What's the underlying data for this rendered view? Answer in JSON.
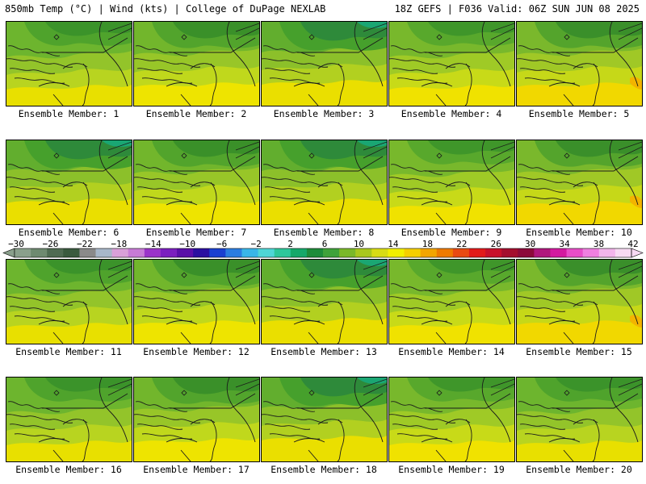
{
  "header": {
    "left": "850mb Temp (°C) | Wind (kts) | College of DuPage NEXLAB",
    "right": "18Z GEFS | F036 Valid: 06Z SUN JUN 08 2025"
  },
  "members": [
    {
      "caption": "Ensemble Member: 1",
      "variant": 0
    },
    {
      "caption": "Ensemble Member: 2",
      "variant": 1
    },
    {
      "caption": "Ensemble Member: 3",
      "variant": 2
    },
    {
      "caption": "Ensemble Member: 4",
      "variant": 3
    },
    {
      "caption": "Ensemble Member: 5",
      "variant": 4
    },
    {
      "caption": "Ensemble Member: 6",
      "variant": 2
    },
    {
      "caption": "Ensemble Member: 7",
      "variant": 1
    },
    {
      "caption": "Ensemble Member: 8",
      "variant": 2
    },
    {
      "caption": "Ensemble Member: 9",
      "variant": 3
    },
    {
      "caption": "Ensemble Member: 10",
      "variant": 4
    },
    {
      "caption": "Ensemble Member: 11",
      "variant": 0
    },
    {
      "caption": "Ensemble Member: 12",
      "variant": 1
    },
    {
      "caption": "Ensemble Member: 13",
      "variant": 2
    },
    {
      "caption": "Ensemble Member: 14",
      "variant": 3
    },
    {
      "caption": "Ensemble Member: 15",
      "variant": 4
    },
    {
      "caption": "Ensemble Member: 16",
      "variant": 0
    },
    {
      "caption": "Ensemble Member: 17",
      "variant": 1
    },
    {
      "caption": "Ensemble Member: 18",
      "variant": 2
    },
    {
      "caption": "Ensemble Member: 19",
      "variant": 3
    },
    {
      "caption": "Ensemble Member: 20",
      "variant": 0
    }
  ],
  "colorbar": {
    "labels": [
      "−30",
      "−26",
      "−22",
      "−18",
      "−14",
      "−10",
      "−6",
      "−2",
      "2",
      "6",
      "10",
      "14",
      "18",
      "22",
      "26",
      "30",
      "34",
      "38",
      "42"
    ],
    "colors": [
      "#8aa08c",
      "#6e8a70",
      "#4f6b52",
      "#3a5a3e",
      "#8a8a8a",
      "#a7b7c9",
      "#d9a0d9",
      "#c77bd6",
      "#9a33c9",
      "#7b1fbf",
      "#5a0fa8",
      "#2b0fa0",
      "#1a3fd0",
      "#2b7de0",
      "#39b6e8",
      "#4fd6d6",
      "#2ec79b",
      "#16a86a",
      "#1e8c3a",
      "#3fa23a",
      "#7ab829",
      "#a8c81d",
      "#d8dc14",
      "#f2f000",
      "#f5cf00",
      "#f3a500",
      "#ee7a00",
      "#e84a12",
      "#e21a1a",
      "#c8102a",
      "#a40e2e",
      "#8c0a3a",
      "#b0177d",
      "#d31aa0",
      "#e84dc8",
      "#f07fe0",
      "#f3b5ec",
      "#f7d9f3"
    ]
  }
}
